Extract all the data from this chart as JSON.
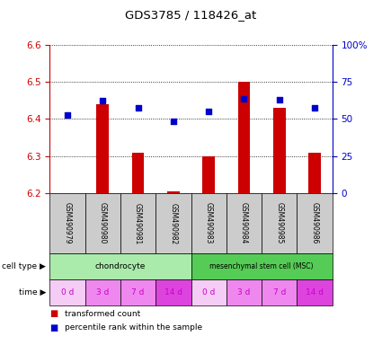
{
  "title": "GDS3785 / 118426_at",
  "samples": [
    "GSM490979",
    "GSM490980",
    "GSM490981",
    "GSM490982",
    "GSM490983",
    "GSM490984",
    "GSM490985",
    "GSM490986"
  ],
  "transformed_count": [
    6.2,
    6.44,
    6.31,
    6.205,
    6.3,
    6.5,
    6.43,
    6.31
  ],
  "bar_base": 6.2,
  "percentile_yvals": [
    6.41,
    6.45,
    6.43,
    6.395,
    6.42,
    6.455,
    6.452,
    6.43
  ],
  "ylim": [
    6.2,
    6.6
  ],
  "yticks": [
    6.2,
    6.3,
    6.4,
    6.5,
    6.6
  ],
  "right_ytick_labels": [
    "0",
    "25",
    "50",
    "75",
    "100%"
  ],
  "right_ytick_vals": [
    6.2,
    6.3,
    6.4,
    6.5,
    6.6
  ],
  "bar_color": "#cc0000",
  "dot_color": "#0000cc",
  "cell_type_groups": [
    {
      "label": "chondrocyte",
      "start": 0,
      "end": 4,
      "color": "#aaeaaa"
    },
    {
      "label": "mesenchymal stem cell (MSC)",
      "start": 4,
      "end": 8,
      "color": "#55cc55"
    }
  ],
  "time_labels": [
    "0 d",
    "3 d",
    "7 d",
    "14 d",
    "0 d",
    "3 d",
    "7 d",
    "14 d"
  ],
  "time_colors": [
    "#f5ccf5",
    "#ee88ee",
    "#ee88ee",
    "#dd44dd",
    "#f5ccf5",
    "#ee88ee",
    "#ee88ee",
    "#dd44dd"
  ],
  "time_text_color": "#cc00cc",
  "sample_box_color": "#cccccc",
  "left_axis_color": "#cc0000",
  "right_axis_color": "#0000cc",
  "bar_width": 0.35,
  "dot_size": 22
}
